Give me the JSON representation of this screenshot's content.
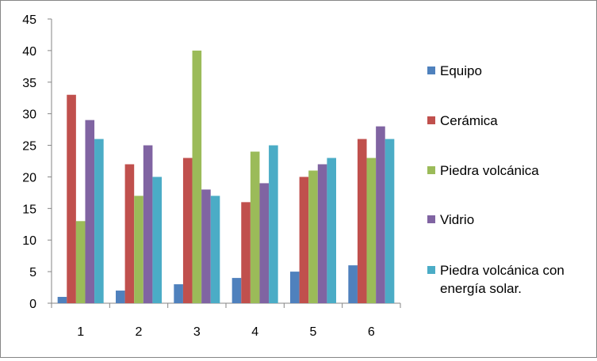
{
  "chart_data": {
    "type": "bar",
    "categories": [
      "1",
      "2",
      "3",
      "4",
      "5",
      "6"
    ],
    "series": [
      {
        "name": "Equipo",
        "color": "#4F81BD",
        "values": [
          1,
          2,
          3,
          4,
          5,
          6
        ]
      },
      {
        "name": "Cerámica",
        "color": "#C0504D",
        "values": [
          33,
          22,
          23,
          16,
          20,
          26
        ]
      },
      {
        "name": "Piedra volcánica",
        "color": "#9BBB59",
        "values": [
          13,
          17,
          40,
          24,
          21,
          23
        ]
      },
      {
        "name": "Vidrio",
        "color": "#8064A2",
        "values": [
          29,
          25,
          18,
          19,
          22,
          28
        ]
      },
      {
        "name": "Piedra volcánica  con energía solar.",
        "color": "#4BACC6",
        "values": [
          26,
          20,
          17,
          25,
          23,
          26
        ]
      }
    ],
    "ylim": [
      0,
      45
    ],
    "yticks": [
      0,
      5,
      10,
      15,
      20,
      25,
      30,
      35,
      40,
      45
    ],
    "grid": false,
    "legend": "right"
  }
}
